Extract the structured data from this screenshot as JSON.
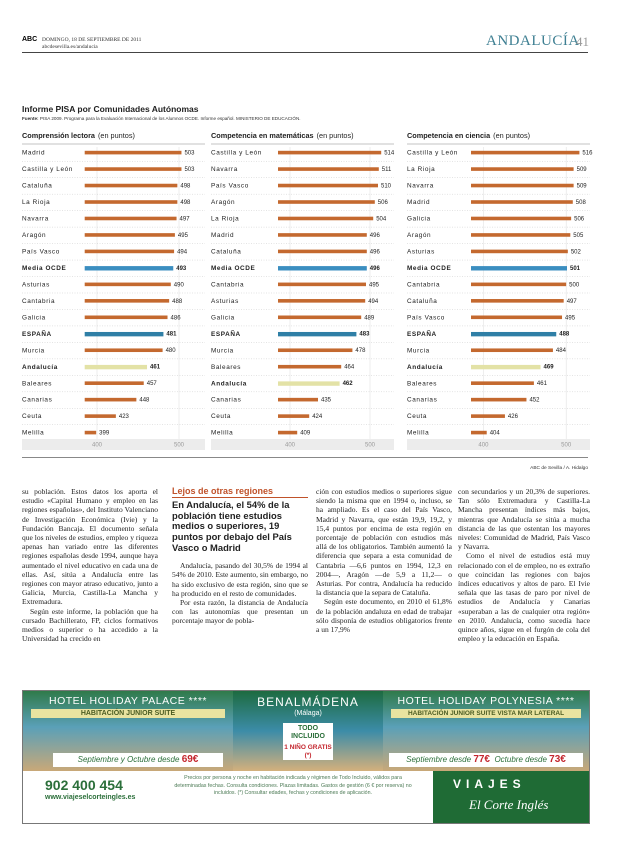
{
  "header": {
    "brand": "ABC",
    "date": "DOMINGO, 18 DE SEPTIEMBRE DE 2011",
    "url": "abcdesevilla.es/andalucia",
    "section": "ANDALUCÍA",
    "page": "41"
  },
  "infographic": {
    "title": "Informe PISA por Comunidades Autónomas",
    "source_label": "Fuente:",
    "source": "PISA 2009. Programa para la Evaluación Internacional de los Alumnos OCDE. Informe español. MINISTERIO DE EDUCACIÓN.",
    "credit": "ABC de Sevilla / A. Hidalgo"
  },
  "chart_data": [
    {
      "type": "bar",
      "orientation": "horizontal",
      "title": "Comprensión lectora",
      "unit_label": "(en puntos)",
      "categories": [
        "Madrid",
        "Castilla y León",
        "Cataluña",
        "La Rioja",
        "Navarra",
        "Aragón",
        "País Vasco",
        "Media OCDE",
        "Asturias",
        "Cantabria",
        "Galicia",
        "ESPAÑA",
        "Murcia",
        "Andalucía",
        "Baleares",
        "Canarias",
        "Ceuta",
        "Melilla"
      ],
      "values": [
        503,
        503,
        498,
        498,
        497,
        495,
        494,
        493,
        490,
        488,
        486,
        481,
        480,
        461,
        457,
        448,
        423,
        399
      ],
      "colors": [
        "#c4692f",
        "#c4692f",
        "#c4692f",
        "#c4692f",
        "#c4692f",
        "#c4692f",
        "#c4692f",
        "#3b8ec0",
        "#c4692f",
        "#c4692f",
        "#c4692f",
        "#2f7fa6",
        "#c4692f",
        "#e3e2a6",
        "#c4692f",
        "#c4692f",
        "#c4692f",
        "#c4692f"
      ],
      "xlim": [
        385,
        530
      ],
      "xticks": [
        400,
        500
      ]
    },
    {
      "type": "bar",
      "orientation": "horizontal",
      "title": "Competencia en matemáticas",
      "unit_label": "(en puntos)",
      "categories": [
        "Castilla y León",
        "Navarra",
        "País Vasco",
        "Aragón",
        "La Rioja",
        "Madrid",
        "Cataluña",
        "Media OCDE",
        "Cantabria",
        "Asturias",
        "Galicia",
        "ESPAÑA",
        "Murcia",
        "Baleares",
        "Andalucía",
        "Canarias",
        "Ceuta",
        "Melilla"
      ],
      "values": [
        514,
        511,
        510,
        506,
        504,
        496,
        496,
        496,
        495,
        494,
        489,
        483,
        478,
        464,
        462,
        435,
        424,
        409
      ],
      "colors": [
        "#c4692f",
        "#c4692f",
        "#c4692f",
        "#c4692f",
        "#c4692f",
        "#c4692f",
        "#c4692f",
        "#3b8ec0",
        "#c4692f",
        "#c4692f",
        "#c4692f",
        "#2f7fa6",
        "#c4692f",
        "#c4692f",
        "#e3e2a6",
        "#c4692f",
        "#c4692f",
        "#c4692f"
      ],
      "xlim": [
        385,
        530
      ],
      "xticks": [
        400,
        500
      ]
    },
    {
      "type": "bar",
      "orientation": "horizontal",
      "title": "Competencia en ciencia",
      "unit_label": "(en puntos)",
      "categories": [
        "Castilla y León",
        "La Rioja",
        "Navarra",
        "Madrid",
        "Galicia",
        "Aragón",
        "Asturias",
        "Media OCDE",
        "Cantabria",
        "Cataluña",
        "País Vasco",
        "ESPAÑA",
        "Murcia",
        "Andalucía",
        "Baleares",
        "Canarias",
        "Ceuta",
        "Melilla"
      ],
      "values": [
        516,
        509,
        509,
        508,
        506,
        505,
        502,
        501,
        500,
        497,
        495,
        488,
        484,
        469,
        461,
        452,
        426,
        404
      ],
      "colors": [
        "#c4692f",
        "#c4692f",
        "#c4692f",
        "#c4692f",
        "#c4692f",
        "#c4692f",
        "#c4692f",
        "#3b8ec0",
        "#c4692f",
        "#c4692f",
        "#c4692f",
        "#2f7fa6",
        "#c4692f",
        "#e3e2a6",
        "#c4692f",
        "#c4692f",
        "#c4692f",
        "#c4692f"
      ],
      "xlim": [
        385,
        530
      ],
      "xticks": [
        400,
        500
      ]
    }
  ],
  "article": {
    "sidebar": {
      "kicker": "Lejos de otras regiones",
      "headline": "En Andalucía, el 54% de la población tiene estudios medios o superiores, 19 puntos por debajo del País Vasco o Madrid"
    },
    "columns": [
      {
        "paragraphs": [
          "su población. Estos datos los aporta el estudio «Capital Humano y empleo en las regiones españolas», del Instituto Valenciano de Investigación Económica (Ivie) y la Fundación Bancaja. El documento señala que los niveles de estudios, empleo y riqueza apenas han variado entre las diferentes regiones españolas desde 1994, aunque haya aumentado el nivel educativo en cada una de ellas. Así, sitúa a Andalucía entre las regiones con mayor atraso educativo, junto a Galicia, Murcia, Castilla-La Mancha y Extremadura.",
          "Según este informe, la población que ha cursado Bachillerato, FP, ciclos formativos medios o superior o ha accedido a la Universidad ha crecido en"
        ]
      },
      {
        "paragraphs": [
          "Andalucía, pasando del 30,5% de 1994 al 54% de 2010. Este aumento, sin embargo, no ha sido exclusivo de esta región, sino que se ha producido en el resto de comunidades.",
          "Por esta razón, la distancia de Andalucía con las autonomías que presentan un porcentaje mayor de pobla-"
        ]
      },
      {
        "paragraphs": [
          "ción con estudios medios o superiores sigue siendo la misma que en 1994 o, incluso, se ha ampliado. Es el caso del País Vasco, Madrid y Navarra, que están 19,9, 19,2, y 15,4 puntos por encima de esta región en porcentaje de población con estudios más allá de los obligatorios. También aumentó la diferencia que separa a esta comunidad de Cantabria —6,6 puntos en 1994, 12,3 en 2004—, Aragón —de 5,9 a 11,2— o Asturias. Por contra, Andalucía ha reducido la distancia que la separa de Cataluña.",
          "Según este documento, en 2010 el 61,8% de la población andaluza en edad de trabajar sólo disponía de estudios obligatorios frente a un 17,9%"
        ]
      },
      {
        "paragraphs": [
          "con secundarios y un 20,3% de superiores. Tan sólo Extremadura y Castilla-La Mancha presentan índices más bajos, mientras que Andalucía se sitúa a mucha distancia de las que ostentan los mayores niveles: Comunidad de Madrid, País Vasco y Navarra.",
          "Como el nivel de estudios está muy relacionado con el de empleo, no es extraño que coincidan las regiones con bajos índices educativos y altos de paro. El Ivie señala que las tasas de paro por nivel de estudios de Andalucía y Canarias «superaban a las de cualquier otra región» en 2010. Andalucía, como sucedía hace quince años, sigue en el furgón de cola del empleo y la educación en España."
        ]
      }
    ]
  },
  "ad": {
    "hotel_1": "HOTEL HOLIDAY PALACE ****",
    "hotel_1_room": "HABITACIÓN JUNIOR SUITE",
    "town": "BENALMÁDENA",
    "province": "(Málaga)",
    "badge_1": "TODO INCLUIDO",
    "badge_2": "1 NIÑO GRATIS (*)",
    "hotel_2": "HOTEL HOLIDAY POLYNESIA ****",
    "hotel_2_room": "HABITACIÓN JUNIOR SUITE VISTA MAR LATERAL",
    "price_1_text": "Septiembre y Octubre desde",
    "price_1": "69€",
    "price_2_text": "Septiembre desde",
    "price_2": "77€",
    "price_3_text": "Octubre desde",
    "price_3": "73€",
    "phone": "902 400 454",
    "web": "www.viajeselcorteingles.es",
    "fine_print": "Precios por persona y noche en habitación indicada y régimen de Todo Incluido, válidos para determinadas fechas. Consulta condiciones. Plazas limitadas. Gastos de gestión (6 € por reserva) no incluidos. (*) Consultar edades, fechas y condiciones de aplicación.",
    "brand_1": "VIAJES",
    "brand_2": "El Corte Inglés"
  }
}
